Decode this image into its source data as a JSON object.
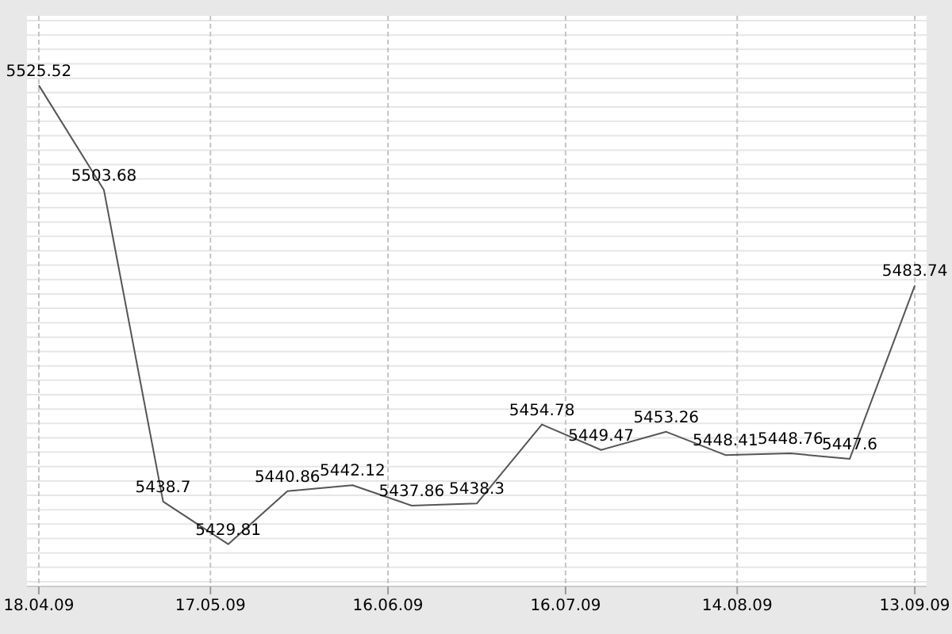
{
  "chart_data": {
    "type": "line",
    "x": [
      "2009-04-18",
      "2009-04-29",
      "2009-05-09",
      "2009-05-20",
      "2009-05-30",
      "2009-06-10",
      "2009-06-20",
      "2009-07-01",
      "2009-07-12",
      "2009-07-22",
      "2009-08-02",
      "2009-08-12",
      "2009-08-23",
      "2009-09-02",
      "2009-09-13"
    ],
    "series": [
      {
        "color": "#555555",
        "values": [
          5525.52,
          5503.68,
          5438.7,
          5429.81,
          5440.86,
          5442.12,
          5437.86,
          5438.3,
          5454.78,
          5449.47,
          5453.26,
          5448.41,
          5448.76,
          5447.6,
          5483.74
        ]
      }
    ],
    "data_labels": true,
    "xlim": [
      "2009-04-16",
      "2009-09-15"
    ],
    "xticks": [
      {
        "value": "2009-04-18",
        "label": "18.04.09"
      },
      {
        "value": "2009-05-17",
        "label": "17.05.09"
      },
      {
        "value": "2009-06-16",
        "label": "16.06.09"
      },
      {
        "value": "2009-07-16",
        "label": "16.07.09"
      },
      {
        "value": "2009-08-14",
        "label": "14.08.09"
      },
      {
        "value": "2009-09-13",
        "label": "13.09.09"
      }
    ],
    "ylim": [
      5421,
      5540
    ],
    "yticks": [
      {
        "value": 5422,
        "label": null
      },
      {
        "value": 5425,
        "label": null
      },
      {
        "value": 5428,
        "label": null
      },
      {
        "value": 5431,
        "label": null
      },
      {
        "value": 5434,
        "label": null
      },
      {
        "value": 5437,
        "label": null
      },
      {
        "value": 5440,
        "label": null
      },
      {
        "value": 5443,
        "label": null
      },
      {
        "value": 5446,
        "label": null
      },
      {
        "value": 5449,
        "label": null
      },
      {
        "value": 5452,
        "label": null
      },
      {
        "value": 5455,
        "label": null
      },
      {
        "value": 5458,
        "label": null
      },
      {
        "value": 5461,
        "label": null
      },
      {
        "value": 5464,
        "label": null
      },
      {
        "value": 5467,
        "label": null
      },
      {
        "value": 5470,
        "label": null
      },
      {
        "value": 5473,
        "label": null
      },
      {
        "value": 5476,
        "label": null
      },
      {
        "value": 5479,
        "label": null
      },
      {
        "value": 5482,
        "label": null
      },
      {
        "value": 5485,
        "label": null
      },
      {
        "value": 5488,
        "label": null
      },
      {
        "value": 5491,
        "label": null
      },
      {
        "value": 5494,
        "label": null
      },
      {
        "value": 5497,
        "label": null
      },
      {
        "value": 5500,
        "label": null
      },
      {
        "value": 5503,
        "label": null
      },
      {
        "value": 5506,
        "label": null
      },
      {
        "value": 5509,
        "label": null
      },
      {
        "value": 5512,
        "label": null
      },
      {
        "value": 5515,
        "label": null
      },
      {
        "value": 5518,
        "label": null
      },
      {
        "value": 5521,
        "label": null
      },
      {
        "value": 5524,
        "label": null
      },
      {
        "value": 5527,
        "label": null
      },
      {
        "value": 5530,
        "label": null
      },
      {
        "value": 5533,
        "label": null
      },
      {
        "value": 5536,
        "label": null
      },
      {
        "value": 5539,
        "label": null
      }
    ],
    "tick_labels": "x",
    "grid": true,
    "line_style": "solid"
  }
}
